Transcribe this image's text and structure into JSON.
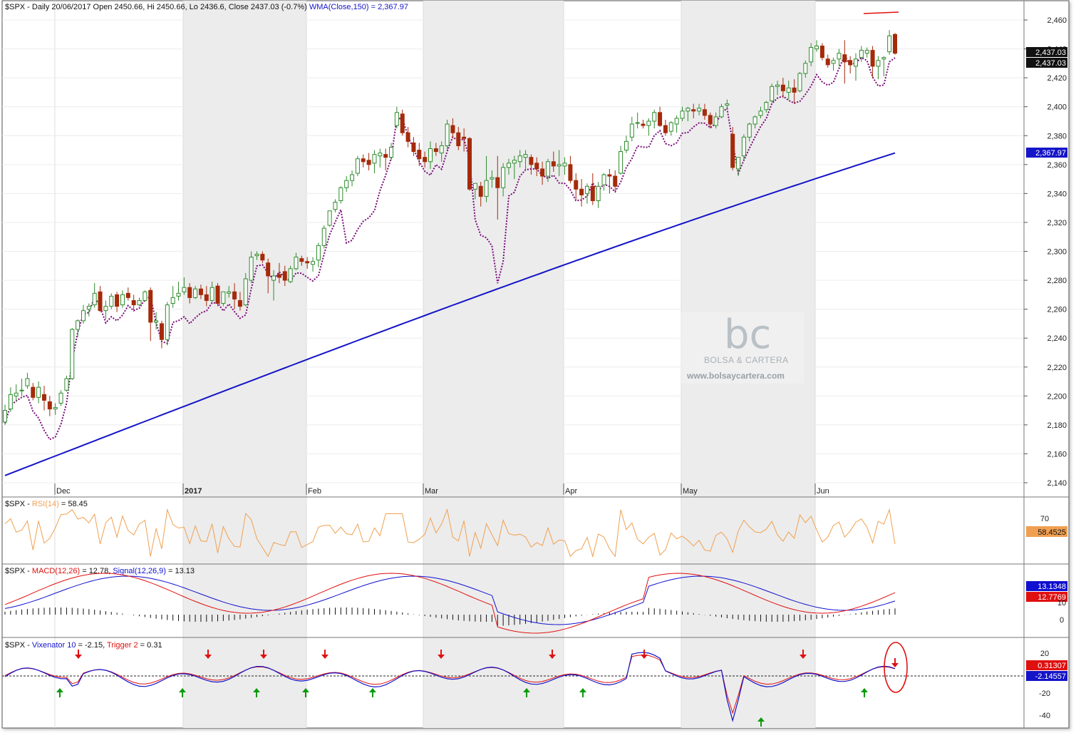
{
  "colors": {
    "up_body": "#ffffff",
    "up_border": "#2e8b2e",
    "down_body": "#a52a0a",
    "wma": "#1414c8",
    "dotted": "#7a0a7a",
    "rsi": "#f0a050",
    "macd": "#e01010",
    "signal": "#1010d0",
    "vix_main": "#1414c8",
    "vix_trigger": "#e01010",
    "arrow_down": "#e01010",
    "arrow_up": "#0a9a0a",
    "shade": "#ececec"
  },
  "main": {
    "title_prefix": "$SPX - Daily 20/06/2017 Open 2450.66, Hi 2450.66, Lo 2436.6, Close 2437.03 (-0.7%) ",
    "title_wma": "WMA(Close,150) = 2,367.97",
    "price_tag_1": "2,437.03",
    "price_tag_2": "2,437.03",
    "wma_tag": "2,367.97"
  },
  "rsi_panel": {
    "label_prefix": "$SPX - ",
    "label_name": "RSI(14)",
    "label_value": " = 58.45",
    "tag": "58.4525",
    "ticks": [
      "70"
    ]
  },
  "macd_panel": {
    "label_prefix": "$SPX - ",
    "label_macd": "MACD(12,26)",
    "label_macd_value": " = 12.78, ",
    "label_signal": "Signal(12,26,9)",
    "label_signal_value": " = 13.13",
    "tag_signal": "13.1348",
    "tag_macd": "12.7769",
    "ticks": [
      "10",
      "0"
    ]
  },
  "vix_panel": {
    "label_prefix": "$SPX - ",
    "label_vix": "Vixenator 10",
    "label_vix_value": " = -2.15, ",
    "label_trigger": "Trigger 2",
    "label_trigger_value": " = 0.31",
    "tag_trigger": "0.31307",
    "tag_vix": "-2.14557",
    "ticks": [
      "20",
      "-20",
      "-40"
    ]
  },
  "watermark": {
    "logo": "bc",
    "name": "BOLSA & CARTERA",
    "url": "www.bolsaycartera.com"
  },
  "chart_data": {
    "type": "candlestick",
    "price_axis_ticks": [
      "2,460",
      "2,440",
      "2,420",
      "2,400",
      "2,380",
      "2,360",
      "2,340",
      "2,320",
      "2,300",
      "2,280",
      "2,260",
      "2,240",
      "2,220",
      "2,200",
      "2,180",
      "2,160",
      "2,140"
    ],
    "month_labels": [
      "Dec",
      "2017",
      "Feb",
      "Mar",
      "Apr",
      "May",
      "Jun"
    ],
    "candles": [
      [
        2182,
        2194,
        2180,
        2190
      ],
      [
        2191,
        2206,
        2189,
        2201
      ],
      [
        2200,
        2208,
        2196,
        2202
      ],
      [
        2204,
        2212,
        2200,
        2204
      ],
      [
        2207,
        2216,
        2205,
        2212
      ],
      [
        2206,
        2209,
        2197,
        2199
      ],
      [
        2199,
        2210,
        2195,
        2206
      ],
      [
        2201,
        2207,
        2190,
        2197
      ],
      [
        2196,
        2200,
        2186,
        2191
      ],
      [
        2191,
        2195,
        2187,
        2192
      ],
      [
        2195,
        2204,
        2193,
        2202
      ],
      [
        2204,
        2214,
        2203,
        2212
      ],
      [
        2212,
        2247,
        2211,
        2246
      ],
      [
        2246,
        2253,
        2241,
        2252
      ],
      [
        2252,
        2263,
        2250,
        2259
      ],
      [
        2260,
        2264,
        2255,
        2262
      ],
      [
        2263,
        2278,
        2261,
        2271
      ],
      [
        2272,
        2276,
        2258,
        2259
      ],
      [
        2259,
        2266,
        2253,
        2262
      ],
      [
        2262,
        2271,
        2260,
        2269
      ],
      [
        2270,
        2272,
        2258,
        2262
      ],
      [
        2263,
        2273,
        2261,
        2270
      ],
      [
        2271,
        2275,
        2266,
        2268
      ],
      [
        2266,
        2270,
        2259,
        2263
      ],
      [
        2263,
        2268,
        2262,
        2266
      ],
      [
        2266,
        2273,
        2265,
        2272
      ],
      [
        2273,
        2275,
        2238,
        2251
      ],
      [
        2251,
        2258,
        2246,
        2252
      ],
      [
        2250,
        2252,
        2233,
        2239
      ],
      [
        2239,
        2265,
        2235,
        2263
      ],
      [
        2264,
        2276,
        2261,
        2268
      ],
      [
        2269,
        2279,
        2266,
        2271
      ],
      [
        2272,
        2282,
        2270,
        2275
      ],
      [
        2275,
        2278,
        2264,
        2268
      ],
      [
        2268,
        2276,
        2267,
        2274
      ],
      [
        2274,
        2277,
        2267,
        2270
      ],
      [
        2270,
        2276,
        2262,
        2266
      ],
      [
        2266,
        2279,
        2265,
        2275
      ],
      [
        2276,
        2278,
        2262,
        2264
      ],
      [
        2264,
        2272,
        2262,
        2272
      ],
      [
        2271,
        2276,
        2268,
        2272
      ],
      [
        2272,
        2278,
        2260,
        2267
      ],
      [
        2266,
        2272,
        2259,
        2262
      ],
      [
        2263,
        2285,
        2262,
        2281
      ],
      [
        2280,
        2300,
        2278,
        2296
      ],
      [
        2297,
        2300,
        2294,
        2298
      ],
      [
        2298,
        2300,
        2292,
        2294
      ],
      [
        2292,
        2295,
        2271,
        2283
      ],
      [
        2280,
        2287,
        2266,
        2283
      ],
      [
        2284,
        2292,
        2278,
        2282
      ],
      [
        2286,
        2290,
        2276,
        2280
      ],
      [
        2279,
        2290,
        2278,
        2288
      ],
      [
        2288,
        2299,
        2287,
        2296
      ],
      [
        2295,
        2297,
        2290,
        2293
      ],
      [
        2293,
        2296,
        2288,
        2292
      ],
      [
        2291,
        2296,
        2286,
        2293
      ],
      [
        2294,
        2306,
        2289,
        2304
      ],
      [
        2304,
        2318,
        2302,
        2316
      ],
      [
        2318,
        2328,
        2317,
        2328
      ],
      [
        2329,
        2336,
        2327,
        2334
      ],
      [
        2335,
        2345,
        2333,
        2344
      ],
      [
        2344,
        2352,
        2341,
        2349
      ],
      [
        2349,
        2356,
        2345,
        2353
      ],
      [
        2354,
        2366,
        2352,
        2364
      ],
      [
        2364,
        2367,
        2358,
        2362
      ],
      [
        2363,
        2368,
        2356,
        2360
      ],
      [
        2361,
        2370,
        2354,
        2367
      ],
      [
        2366,
        2371,
        2358,
        2368
      ],
      [
        2367,
        2371,
        2356,
        2365
      ],
      [
        2365,
        2375,
        2363,
        2372
      ],
      [
        2387,
        2400,
        2385,
        2396
      ],
      [
        2395,
        2398,
        2380,
        2382
      ],
      [
        2382,
        2386,
        2372,
        2376
      ],
      [
        2375,
        2379,
        2366,
        2369
      ],
      [
        2370,
        2375,
        2359,
        2364
      ],
      [
        2365,
        2369,
        2358,
        2362
      ],
      [
        2362,
        2376,
        2357,
        2371
      ],
      [
        2371,
        2375,
        2366,
        2369
      ],
      [
        2368,
        2376,
        2362,
        2373
      ],
      [
        2373,
        2391,
        2370,
        2388
      ],
      [
        2387,
        2392,
        2378,
        2382
      ],
      [
        2382,
        2386,
        2370,
        2373
      ],
      [
        2379,
        2385,
        2369,
        2378
      ],
      [
        2378,
        2379,
        2342,
        2343
      ],
      [
        2343,
        2347,
        2336,
        2347
      ],
      [
        2345,
        2348,
        2331,
        2338
      ],
      [
        2338,
        2366,
        2334,
        2349
      ],
      [
        2350,
        2356,
        2344,
        2351
      ],
      [
        2351,
        2366,
        2322,
        2344
      ],
      [
        2344,
        2361,
        2338,
        2358
      ],
      [
        2358,
        2364,
        2353,
        2361
      ],
      [
        2361,
        2366,
        2350,
        2363
      ],
      [
        2362,
        2370,
        2358,
        2366
      ],
      [
        2365,
        2370,
        2357,
        2367
      ],
      [
        2365,
        2367,
        2353,
        2360
      ],
      [
        2361,
        2365,
        2352,
        2357
      ],
      [
        2357,
        2362,
        2346,
        2352
      ],
      [
        2352,
        2364,
        2348,
        2362
      ],
      [
        2362,
        2369,
        2355,
        2359
      ],
      [
        2359,
        2370,
        2352,
        2360
      ],
      [
        2359,
        2365,
        2353,
        2361
      ],
      [
        2360,
        2366,
        2347,
        2349
      ],
      [
        2349,
        2354,
        2336,
        2343
      ],
      [
        2343,
        2350,
        2331,
        2339
      ],
      [
        2340,
        2347,
        2333,
        2345
      ],
      [
        2345,
        2354,
        2332,
        2335
      ],
      [
        2335,
        2348,
        2330,
        2345
      ],
      [
        2346,
        2354,
        2342,
        2353
      ],
      [
        2353,
        2357,
        2340,
        2352
      ],
      [
        2352,
        2356,
        2342,
        2345
      ],
      [
        2354,
        2373,
        2353,
        2369
      ],
      [
        2370,
        2380,
        2368,
        2376
      ],
      [
        2379,
        2393,
        2376,
        2388
      ],
      [
        2389,
        2396,
        2385,
        2389
      ],
      [
        2388,
        2391,
        2385,
        2387
      ],
      [
        2387,
        2392,
        2380,
        2390
      ],
      [
        2390,
        2398,
        2385,
        2396
      ],
      [
        2396,
        2400,
        2386,
        2387
      ],
      [
        2387,
        2391,
        2380,
        2382
      ],
      [
        2383,
        2390,
        2380,
        2389
      ],
      [
        2388,
        2394,
        2382,
        2392
      ],
      [
        2392,
        2400,
        2390,
        2397
      ],
      [
        2397,
        2400,
        2390,
        2399
      ],
      [
        2398,
        2402,
        2392,
        2397
      ],
      [
        2397,
        2402,
        2394,
        2399
      ],
      [
        2398,
        2402,
        2391,
        2394
      ],
      [
        2394,
        2396,
        2385,
        2388
      ],
      [
        2387,
        2396,
        2385,
        2393
      ],
      [
        2393,
        2402,
        2392,
        2400
      ],
      [
        2401,
        2405,
        2398,
        2402
      ],
      [
        2381,
        2386,
        2356,
        2358
      ],
      [
        2357,
        2365,
        2352,
        2365
      ],
      [
        2366,
        2381,
        2363,
        2379
      ],
      [
        2379,
        2389,
        2376,
        2388
      ],
      [
        2388,
        2394,
        2385,
        2393
      ],
      [
        2394,
        2400,
        2392,
        2397
      ],
      [
        2398,
        2404,
        2396,
        2403
      ],
      [
        2404,
        2416,
        2403,
        2414
      ],
      [
        2414,
        2418,
        2408,
        2415
      ],
      [
        2415,
        2420,
        2406,
        2411
      ],
      [
        2410,
        2418,
        2405,
        2413
      ],
      [
        2413,
        2419,
        2402,
        2410
      ],
      [
        2411,
        2424,
        2410,
        2423
      ],
      [
        2423,
        2432,
        2420,
        2430
      ],
      [
        2431,
        2444,
        2428,
        2441
      ],
      [
        2440,
        2446,
        2438,
        2442
      ],
      [
        2442,
        2444,
        2432,
        2434
      ],
      [
        2433,
        2436,
        2427,
        2429
      ],
      [
        2430,
        2434,
        2425,
        2432
      ],
      [
        2433,
        2440,
        2428,
        2437
      ],
      [
        2436,
        2446,
        2416,
        2431
      ],
      [
        2432,
        2435,
        2423,
        2429
      ],
      [
        2428,
        2437,
        2418,
        2433
      ],
      [
        2434,
        2442,
        2431,
        2439
      ],
      [
        2437,
        2441,
        2434,
        2439
      ],
      [
        2439,
        2442,
        2420,
        2428
      ],
      [
        2428,
        2435,
        2419,
        2432
      ],
      [
        2433,
        2435,
        2421,
        2434
      ],
      [
        2438,
        2453,
        2436,
        2449
      ],
      [
        2450,
        2451,
        2436,
        2437
      ]
    ],
    "wma_ends": [
      2145,
      2368
    ],
    "resistance_line": "descending red line from June high",
    "rsi_range": [
      30,
      82
    ],
    "macd_range": [
      -2,
      18
    ],
    "vix_range": [
      -45,
      30
    ]
  }
}
